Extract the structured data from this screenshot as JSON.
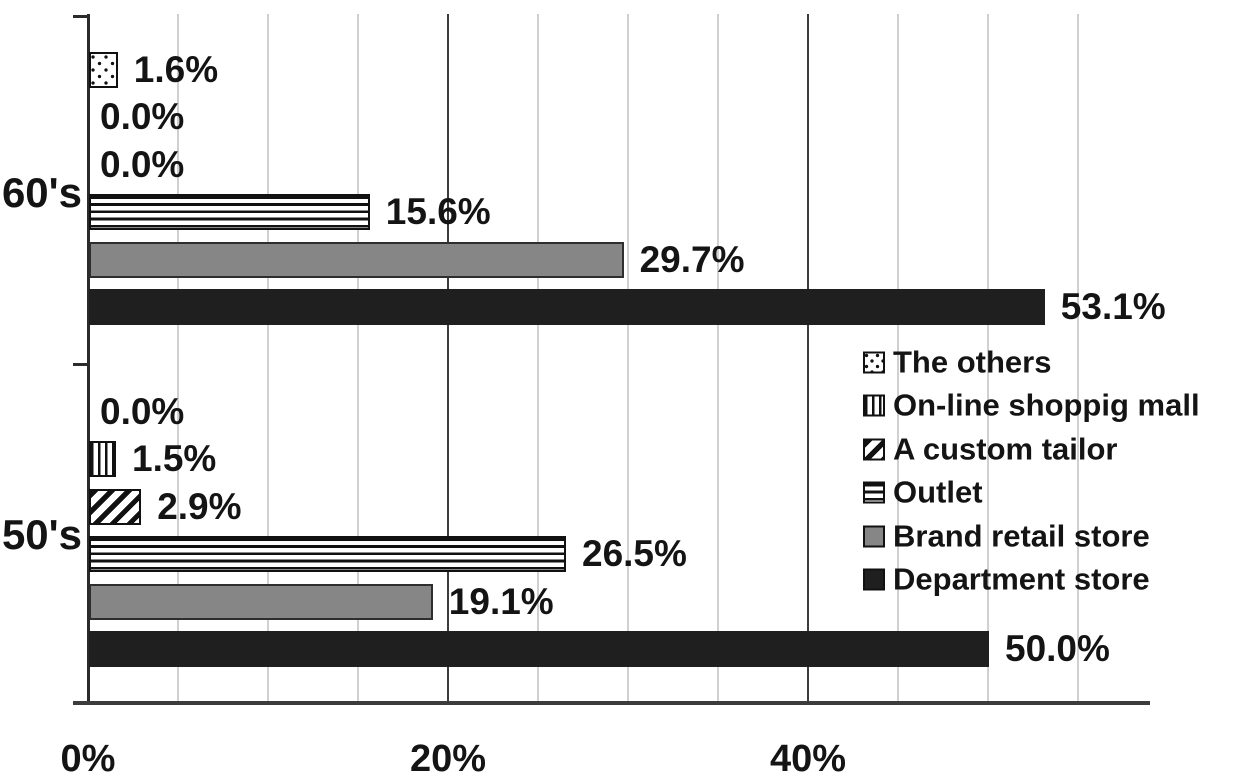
{
  "chart_data": {
    "type": "bar",
    "orientation": "horizontal",
    "title": "",
    "categories": [
      "60's",
      "50's"
    ],
    "series": [
      {
        "name": "The others",
        "pattern": "dots",
        "values": [
          1.6,
          0.0
        ]
      },
      {
        "name": "On-line shoppig mall",
        "pattern": "vertical-lines",
        "values": [
          0.0,
          1.5
        ]
      },
      {
        "name": "A custom tailor",
        "pattern": "diagonal-hatch",
        "values": [
          0.0,
          2.9
        ]
      },
      {
        "name": "Outlet",
        "pattern": "horizontal-lines",
        "values": [
          15.6,
          26.5
        ]
      },
      {
        "name": "Brand retail store",
        "pattern": "solid-gray",
        "values": [
          29.7,
          19.1
        ]
      },
      {
        "name": "Department store",
        "pattern": "solid-black",
        "values": [
          53.1,
          50.0
        ]
      }
    ],
    "bar_order_in_group_top_to_bottom": [
      "The others",
      "On-line shoppig mall",
      "A custom tailor",
      "Outlet",
      "Brand retail store",
      "Department store"
    ],
    "value_label_format": "{value}%",
    "value_labels": {
      "60's": [
        "1.6%",
        "0.0%",
        "0.0%",
        "15.6%",
        "29.7%",
        "53.1%"
      ],
      "50's": [
        "0.0%",
        "1.5%",
        "2.9%",
        "26.5%",
        "19.1%",
        "50.0%"
      ]
    },
    "x_axis": {
      "tick_labels": [
        "0%",
        "20%",
        "40%"
      ],
      "tick_values": [
        0,
        20,
        40
      ],
      "min": 0,
      "max": 59,
      "minor_gridline_step_pct": 5,
      "major_gridlines_pct": [
        20,
        40
      ],
      "grid": "on"
    },
    "legend": {
      "position": "middle-right",
      "entries": [
        "The others",
        "On-line shoppig mall",
        "A custom tailor",
        "Outlet",
        "Brand retail store",
        "Department store"
      ]
    }
  },
  "colors": {
    "background": "#ffffff",
    "bar_gray_fill": "#868686",
    "bar_black_fill": "#1f1f1f",
    "pattern_foreground": "#111111",
    "minor_gridline": "#d0d0d0",
    "major_gridline": "#3c3c3c",
    "axis_line": "#2b2b2b",
    "text": "#141414"
  }
}
